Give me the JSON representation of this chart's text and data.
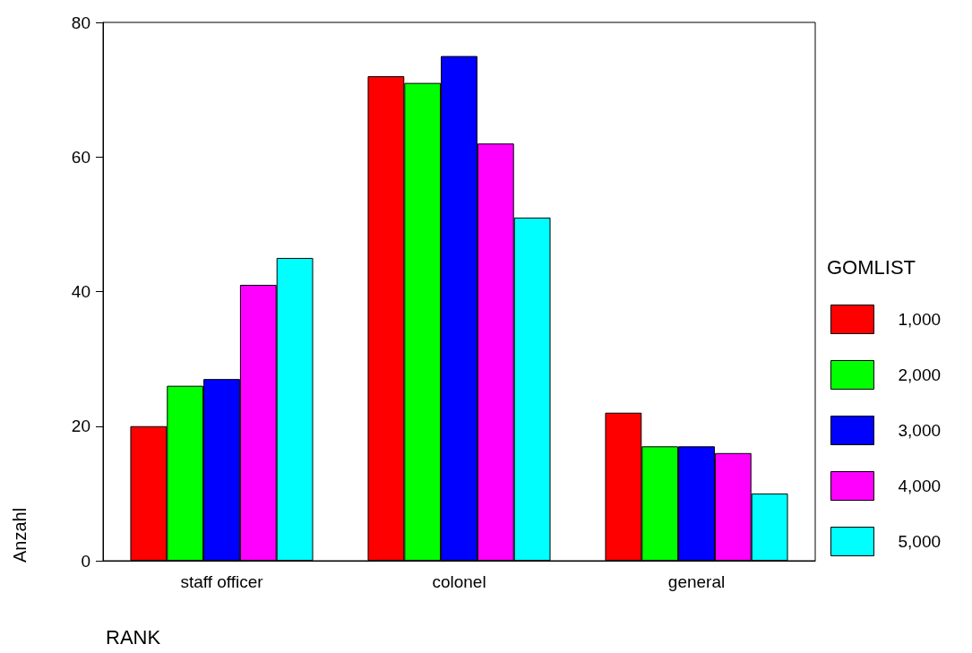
{
  "chart_data": {
    "type": "bar",
    "xlabel": "RANK",
    "ylabel": "Anzahl",
    "legend_title": "GOMLIST",
    "categories": [
      "staff officer",
      "colonel",
      "general"
    ],
    "series": [
      {
        "name": "1,000",
        "color": "#ff0000",
        "values": [
          20,
          72,
          22
        ]
      },
      {
        "name": "2,000",
        "color": "#00ff00",
        "values": [
          26,
          71,
          17
        ]
      },
      {
        "name": "3,000",
        "color": "#0000ff",
        "values": [
          27,
          75,
          17
        ]
      },
      {
        "name": "4,000",
        "color": "#ff00ff",
        "values": [
          41,
          62,
          16
        ]
      },
      {
        "name": "5,000",
        "color": "#00ffff",
        "values": [
          45,
          51,
          10
        ]
      }
    ],
    "ylim": [
      0,
      80
    ],
    "yticks": [
      0,
      20,
      40,
      60,
      80
    ],
    "grid": false,
    "legend": "right"
  }
}
